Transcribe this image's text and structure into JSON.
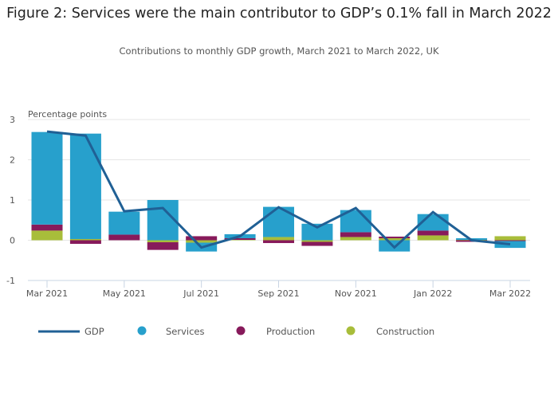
{
  "header": {
    "title": "Figure 2: Services were the main contributor to GDP’s 0.1% fall in March 2022",
    "subtitle": "Contributions to monthly GDP growth, March 2021 to March 2022, UK"
  },
  "chart_data": {
    "type": "bar",
    "stacked": true,
    "title": "Figure 2: Services were the main contributor to GDP’s 0.1% fall in March 2022",
    "subtitle": "Contributions to monthly GDP growth, March 2021 to March 2022, UK",
    "xlabel": "",
    "ylabel": "Percentage points",
    "ylim": [
      -1,
      3
    ],
    "yticks": [
      -1,
      0,
      1,
      2,
      3
    ],
    "grid": true,
    "legend_position": "bottom",
    "categories": [
      "Mar 2021",
      "Apr 2021",
      "May 2021",
      "Jun 2021",
      "Jul 2021",
      "Aug 2021",
      "Sep 2021",
      "Oct 2021",
      "Nov 2021",
      "Dec 2021",
      "Jan 2022",
      "Feb 2022",
      "Mar 2022"
    ],
    "xtick_labels": [
      "Mar 2021",
      "",
      "May 2021",
      "",
      "Jul 2021",
      "",
      "Sep 2021",
      "",
      "Nov 2021",
      "",
      "Jan 2022",
      "",
      "Mar 2022"
    ],
    "series": [
      {
        "name": "Services",
        "type": "bar",
        "color": "#27a0cc",
        "values": [
          2.3,
          2.62,
          0.57,
          1.0,
          -0.22,
          0.1,
          0.75,
          0.41,
          0.55,
          -0.28,
          0.41,
          0.04,
          -0.17
        ]
      },
      {
        "name": "Production",
        "type": "bar",
        "color": "#871a5b",
        "values": [
          0.15,
          -0.09,
          0.14,
          -0.19,
          0.1,
          0.04,
          -0.07,
          -0.1,
          0.12,
          0.04,
          0.12,
          -0.04,
          -0.02
        ]
      },
      {
        "name": "Construction",
        "type": "bar",
        "color": "#a8bd3a",
        "values": [
          0.24,
          0.03,
          0.0,
          -0.05,
          -0.06,
          0.01,
          0.08,
          -0.04,
          0.08,
          0.05,
          0.12,
          0.01,
          0.1
        ]
      },
      {
        "name": "GDP",
        "type": "line",
        "color": "#206095",
        "values": [
          2.7,
          2.6,
          0.72,
          0.8,
          -0.18,
          0.1,
          0.82,
          0.32,
          0.8,
          -0.18,
          0.7,
          0.0,
          -0.1
        ]
      }
    ],
    "legend": [
      {
        "name": "GDP",
        "marker": "line",
        "color": "#206095"
      },
      {
        "name": "Services",
        "marker": "circle",
        "color": "#27a0cc"
      },
      {
        "name": "Production",
        "marker": "circle",
        "color": "#871a5b"
      },
      {
        "name": "Construction",
        "marker": "circle",
        "color": "#a8bd3a"
      }
    ]
  }
}
